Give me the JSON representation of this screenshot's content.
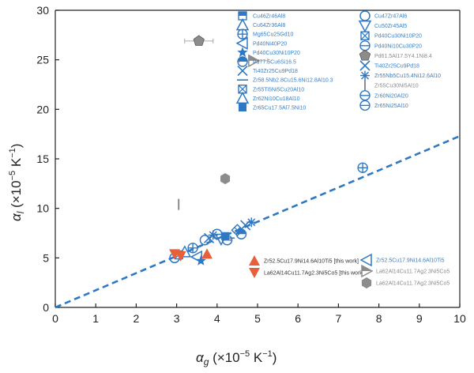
{
  "chart_data": {
    "type": "scatter",
    "title": "",
    "xlabel": {
      "main": "α",
      "sub": "g",
      "unit": " (×10",
      "exp": "−5",
      "tail": " K",
      "exp2": "−1",
      "close": ")"
    },
    "ylabel": {
      "main": "α",
      "sub": "l",
      "unit": " (×10",
      "exp": "−5",
      "tail": " K",
      "exp2": "−1",
      "close": ")"
    },
    "xlim": [
      0,
      10
    ],
    "ylim": [
      0,
      30
    ],
    "xticks": [
      "0",
      "1",
      "2",
      "3",
      "4",
      "5",
      "6",
      "7",
      "8",
      "9",
      "10"
    ],
    "yticks": [
      "0",
      "5",
      "10",
      "15",
      "20",
      "25",
      "30"
    ],
    "grid": false,
    "legend_placement": "top-right (inside)",
    "fit_line": {
      "style": "dashed",
      "color": "#2f78c4",
      "x": [
        0,
        10
      ],
      "y": [
        0,
        17.3
      ]
    },
    "colors": {
      "blue": "#2f78c4",
      "orange": "#e8603a",
      "gray": "#8c8c8c"
    },
    "legend_left": [
      "Cu46Zr46Al8",
      "Cu64Zr36Al8",
      "Mg65Cu25Gd10",
      "Pd40Ni40P20",
      "Pd40Cu30Ni10P20",
      "Pd77.5Cu6Si16.5",
      "Ti40Zr25Cu9Pd18",
      "Zr58.5Nb2.8Cu15.6Ni12.8Al10.3",
      "Zr55Ti5Ni5Cu20Al10",
      "Zr62Ni10Cu18Al10",
      "Zr65Cu17.5Al7.5Ni10"
    ],
    "legend_right": [
      "Cu47Zr47Al6",
      "Cu50Zr45Al5",
      "Pd40Cu30Ni10P20",
      "Pd40Ni10Cu30P20",
      "Pd61.5Al17.5Y4.1Ni8.4",
      "Ti40Zr25Cu9Pd18",
      "Zr55Nb5Cu15.4Ni12.6Al10",
      "Zr55Cu30Ni5Al10",
      "Zr60Ni20Al20",
      "Zr65Ni25Al10"
    ],
    "legend_bottom": [
      "Zr52.5Cu17.9Ni14.6Al10Ti5 [this work]",
      "La62Al14Cu11.7Ag2.3Ni5Co5 [this work]",
      "Zr52.5Cu17.9Ni14.6Al10Ti5",
      "La62Al14Cu11.7Ag2.3Ni5Co5",
      "La62Al14Cu11.7Ag2.3Ni5Co5"
    ],
    "series": [
      {
        "name": "blue literature alloys",
        "color": "#2f78c4",
        "points": [
          [
            2.95,
            5.0
          ],
          [
            3.05,
            5.3
          ],
          [
            3.2,
            5.6
          ],
          [
            3.4,
            6.0
          ],
          [
            3.5,
            5.1
          ],
          [
            3.6,
            4.7
          ],
          [
            3.7,
            6.8
          ],
          [
            3.8,
            7.0
          ],
          [
            3.9,
            7.3
          ],
          [
            4.0,
            7.4
          ],
          [
            4.1,
            6.9
          ],
          [
            4.2,
            7.2
          ],
          [
            4.3,
            7.0
          ],
          [
            4.25,
            6.8
          ],
          [
            4.5,
            7.8
          ],
          [
            4.6,
            7.4
          ],
          [
            4.7,
            8.3
          ],
          [
            4.85,
            8.6
          ],
          [
            7.6,
            14.1
          ]
        ]
      },
      {
        "name": "orange this work",
        "color": "#e8603a",
        "points": [
          [
            2.95,
            5.4
          ],
          [
            3.1,
            5.2
          ],
          [
            3.75,
            5.4
          ]
        ]
      },
      {
        "name": "gray",
        "color": "#8c8c8c",
        "points": [
          [
            3.55,
            26.9
          ],
          [
            4.9,
            24.9
          ],
          [
            4.2,
            13.0
          ],
          [
            3.05,
            10.4
          ]
        ]
      }
    ]
  }
}
